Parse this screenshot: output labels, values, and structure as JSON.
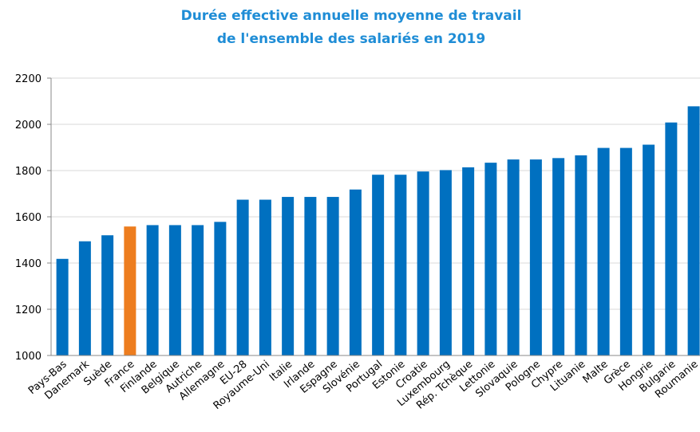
{
  "chart_data": {
    "type": "bar",
    "title": [
      "Durée effective annuelle moyenne de travail",
      "de l'ensemble des salariés en 2019"
    ],
    "categories": [
      "Pays-Bas",
      "Danemark",
      "Suède",
      "France",
      "Finlande",
      "Belgique",
      "Autriche",
      "Allemagne",
      "EU-28",
      "Royaume-Uni",
      "Italie",
      "Irlande",
      "Espagne",
      "Slovénie",
      "Portugal",
      "Estonie",
      "Croatie",
      "Luxembourg",
      "Rép. Tchèque",
      "Lettonie",
      "Slovaquie",
      "Pologne",
      "Chypre",
      "Lituanie",
      "Malte",
      "Grèce",
      "Hongrie",
      "Bulgarie",
      "Roumanie"
    ],
    "values": [
      1418,
      1494,
      1520,
      1558,
      1564,
      1564,
      1564,
      1578,
      1674,
      1674,
      1686,
      1686,
      1686,
      1718,
      1782,
      1782,
      1796,
      1802,
      1814,
      1834,
      1848,
      1848,
      1854,
      1866,
      1898,
      1898,
      1912,
      2008,
      2078
    ],
    "color": "#0070c0",
    "highlight": {
      "index": 3,
      "color": "#ed7d1f"
    },
    "ylim": [
      1000,
      2200
    ],
    "yticks": [
      1000,
      1200,
      1400,
      1600,
      1800,
      2000,
      2200
    ],
    "grid": true
  }
}
